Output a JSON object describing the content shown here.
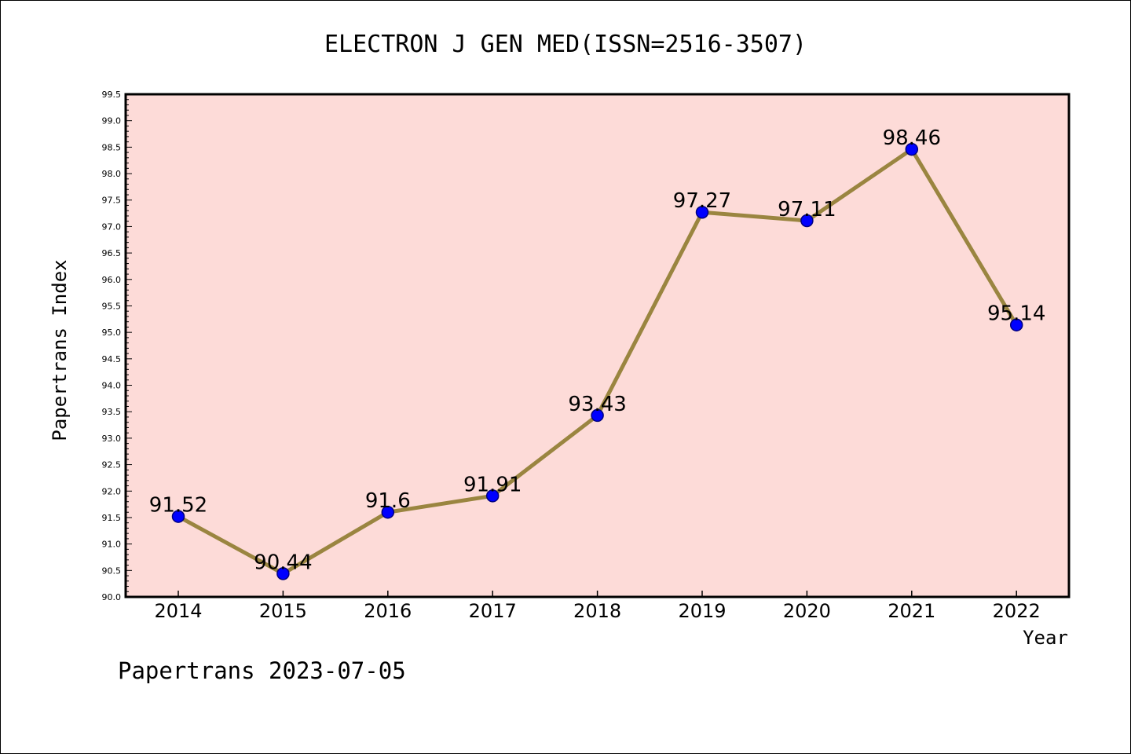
{
  "chart_data": {
    "type": "line",
    "title": "ELECTRON J GEN MED(ISSN=2516-3507)",
    "xlabel": "Year",
    "ylabel": "Papertrans Index",
    "categories": [
      "2014",
      "2015",
      "2016",
      "2017",
      "2018",
      "2019",
      "2020",
      "2021",
      "2022"
    ],
    "series": [
      {
        "values": [
          91.52,
          90.44,
          91.6,
          91.91,
          93.43,
          97.27,
          97.11,
          98.46,
          95.14
        ],
        "data_labels": [
          "91.52",
          "90.44",
          "91.6",
          "91.91",
          "93.43",
          "97.27",
          "97.11",
          "98.46",
          "95.14"
        ]
      }
    ],
    "ylim": [
      90.0,
      99.5
    ],
    "yticks": [
      "90.0",
      "90.5",
      "91.0",
      "91.5",
      "92.0",
      "92.5",
      "93.0",
      "93.5",
      "94.0",
      "94.5",
      "95.0",
      "95.5",
      "96.0",
      "96.5",
      "97.0",
      "97.5",
      "98.0",
      "98.5",
      "99.0",
      "99.5"
    ],
    "grid": false,
    "colors": {
      "plot_background": "#fddbd8",
      "line": "#9a8540",
      "marker": "#0000ff",
      "marker_edge": "#000080"
    },
    "footer": "Papertrans 2023-07-05"
  }
}
